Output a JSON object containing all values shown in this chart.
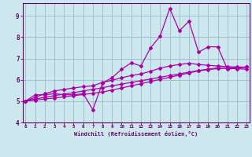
{
  "xlabel": "Windchill (Refroidissement éolien,°C)",
  "bg_color": "#cce8ee",
  "line_color": "#aa00aa",
  "grid_color": "#99bbcc",
  "spine_color": "#660066",
  "tick_color": "#660066",
  "x_ticks": [
    0,
    1,
    2,
    3,
    4,
    5,
    6,
    7,
    8,
    9,
    10,
    11,
    12,
    13,
    14,
    15,
    16,
    17,
    18,
    19,
    20,
    21,
    22,
    23
  ],
  "ylim": [
    4.0,
    9.6
  ],
  "xlim": [
    -0.3,
    23.3
  ],
  "y_ticks": [
    4,
    5,
    6,
    7,
    8,
    9
  ],
  "series1_x": [
    0,
    1,
    2,
    3,
    4,
    5,
    6,
    7,
    8,
    9,
    10,
    11,
    12,
    13,
    14,
    15,
    16,
    17,
    18,
    19,
    20,
    21,
    22,
    23
  ],
  "series1_y": [
    5.0,
    5.3,
    5.3,
    5.35,
    5.3,
    5.3,
    5.35,
    4.6,
    5.85,
    6.1,
    6.5,
    6.8,
    6.65,
    7.5,
    8.05,
    9.35,
    8.3,
    8.75,
    7.3,
    7.55,
    7.55,
    6.5,
    6.55,
    6.6
  ],
  "series2_x": [
    0,
    1,
    2,
    3,
    4,
    5,
    6,
    7,
    8,
    9,
    10,
    11,
    12,
    13,
    14,
    15,
    16,
    17,
    18,
    19,
    20,
    21,
    22,
    23
  ],
  "series2_y": [
    5.0,
    5.18,
    5.35,
    5.48,
    5.55,
    5.62,
    5.68,
    5.72,
    5.88,
    5.98,
    6.1,
    6.2,
    6.28,
    6.4,
    6.55,
    6.65,
    6.72,
    6.78,
    6.72,
    6.68,
    6.65,
    6.62,
    6.6,
    6.6
  ],
  "series3_x": [
    0,
    1,
    2,
    3,
    4,
    5,
    6,
    7,
    8,
    9,
    10,
    11,
    12,
    13,
    14,
    15,
    16,
    17,
    18,
    19,
    20,
    21,
    22,
    23
  ],
  "series3_y": [
    5.0,
    5.1,
    5.18,
    5.26,
    5.33,
    5.4,
    5.48,
    5.55,
    5.63,
    5.72,
    5.8,
    5.88,
    5.96,
    6.04,
    6.12,
    6.2,
    6.28,
    6.36,
    6.44,
    6.5,
    6.56,
    6.54,
    6.52,
    6.5
  ],
  "series4_x": [
    0,
    1,
    2,
    3,
    4,
    5,
    6,
    7,
    8,
    9,
    10,
    11,
    12,
    13,
    14,
    15,
    16,
    17,
    18,
    19,
    20,
    21,
    22,
    23
  ],
  "series4_y": [
    5.0,
    5.05,
    5.1,
    5.15,
    5.2,
    5.26,
    5.31,
    5.37,
    5.43,
    5.52,
    5.62,
    5.72,
    5.82,
    5.92,
    6.02,
    6.12,
    6.22,
    6.32,
    6.42,
    6.48,
    6.53,
    6.55,
    6.57,
    6.6
  ]
}
